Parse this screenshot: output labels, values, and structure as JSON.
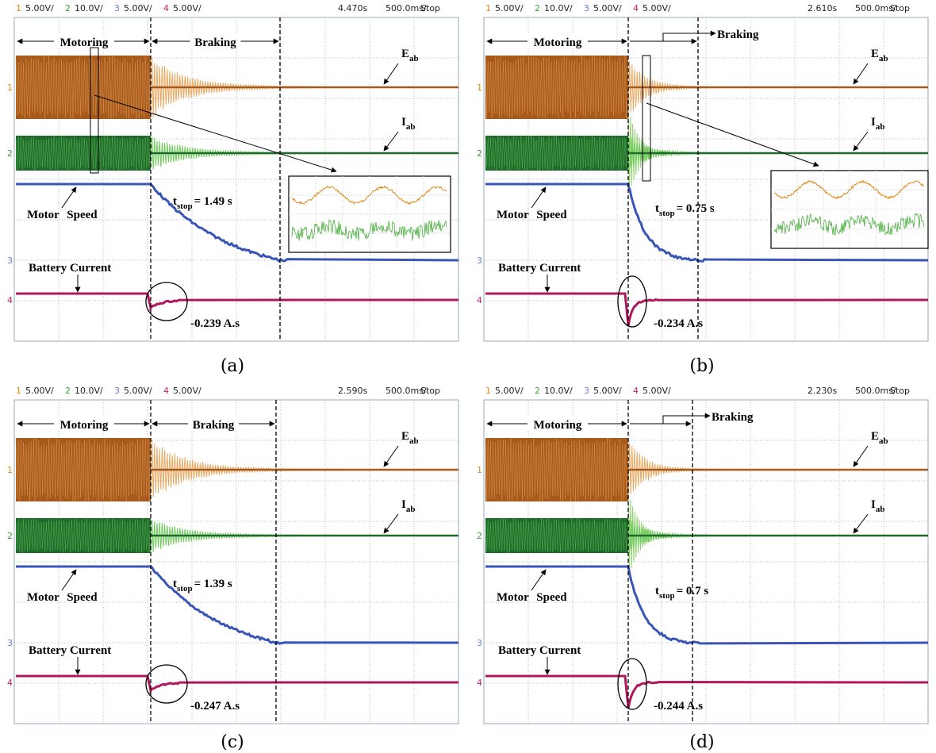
{
  "panels": [
    {
      "label": "(a)",
      "header": {
        "channels": [
          {
            "num": "1",
            "scale": "5.00V/"
          },
          {
            "num": "2",
            "scale": "10.0V/"
          },
          {
            "num": "3",
            "scale": "5.00V/"
          },
          {
            "num": "4",
            "scale": "5.00V/"
          }
        ],
        "time": "4.470s",
        "timebase": "500.0ms/",
        "status": "Stop"
      },
      "motoring": "Motoring",
      "braking": "Braking",
      "e_label": {
        "main": "E",
        "sub": "ab"
      },
      "i_label": {
        "main": "I",
        "sub": "ab"
      },
      "speed_label": "Motor Speed",
      "battery_label": "Battery Current",
      "t_stop": {
        "main": "t",
        "sub": "stop",
        "value": "= 1.49 s"
      },
      "charge": "-0.239 A.s"
    },
    {
      "label": "(b)",
      "header": {
        "channels": [
          {
            "num": "1",
            "scale": "5.00V/"
          },
          {
            "num": "2",
            "scale": "10.0V/"
          },
          {
            "num": "3",
            "scale": "5.00V/"
          },
          {
            "num": "4",
            "scale": "5.00V/"
          }
        ],
        "time": "2.610s",
        "timebase": "500.0ms/",
        "status": "Stop"
      },
      "motoring": "Motoring",
      "braking": "Braking",
      "e_label": {
        "main": "E",
        "sub": "ab"
      },
      "i_label": {
        "main": "I",
        "sub": "ab"
      },
      "speed_label": "Motor Speed",
      "battery_label": "Battery Current",
      "t_stop": {
        "main": "t",
        "sub": "stop",
        "value": "= 0.75 s"
      },
      "charge": "-0.234 A.s"
    },
    {
      "label": "(c)",
      "header": {
        "channels": [
          {
            "num": "1",
            "scale": "5.00V/"
          },
          {
            "num": "2",
            "scale": "10.0V/"
          },
          {
            "num": "3",
            "scale": "5.00V/"
          },
          {
            "num": "4",
            "scale": "5.00V/"
          }
        ],
        "time": "2.590s",
        "timebase": "500.0ms/",
        "status": "Stop"
      },
      "motoring": "Motoring",
      "braking": "Braking",
      "e_label": {
        "main": "E",
        "sub": "ab"
      },
      "i_label": {
        "main": "I",
        "sub": "ab"
      },
      "speed_label": "Motor Speed",
      "battery_label": "Battery Current",
      "t_stop": {
        "main": "t",
        "sub": "stop",
        "value": "= 1.39 s"
      },
      "charge": "-0.247 A.s"
    },
    {
      "label": "(d)",
      "header": {
        "channels": [
          {
            "num": "1",
            "scale": "5.00V/"
          },
          {
            "num": "2",
            "scale": "10.0V/"
          },
          {
            "num": "3",
            "scale": "5.00V/"
          },
          {
            "num": "4",
            "scale": "5.00V/"
          }
        ],
        "time": "2.230s",
        "timebase": "500.0ms/",
        "status": "Stop"
      },
      "motoring": "Motoring",
      "braking": "Braking",
      "e_label": {
        "main": "E",
        "sub": "ab"
      },
      "i_label": {
        "main": "I",
        "sub": "ab"
      },
      "speed_label": "Motor Speed",
      "battery_label": "Battery Current",
      "t_stop": {
        "main": "t",
        "sub": "stop",
        "value": "= 0.7 s"
      },
      "charge": "-0.244 A.s"
    }
  ]
}
